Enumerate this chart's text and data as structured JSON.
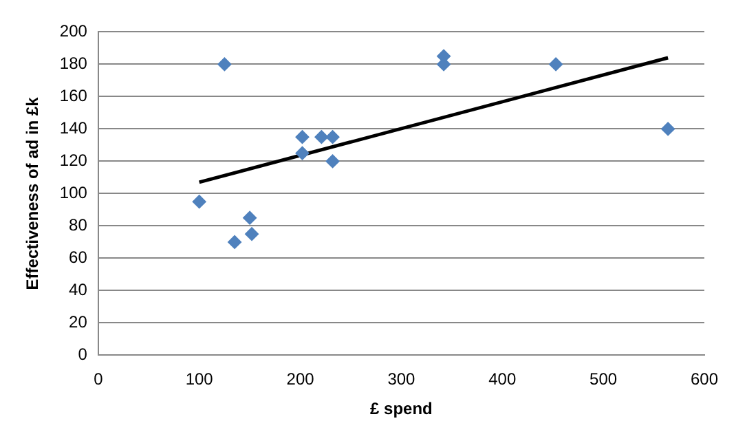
{
  "chart_data": {
    "type": "scatter",
    "xlabel": "£ spend",
    "ylabel": "Effectiveness of ad in £k",
    "x": [
      100,
      125,
      135,
      150,
      152,
      202,
      202,
      221,
      232,
      232,
      342,
      342,
      453,
      564
    ],
    "series": [
      {
        "type": "scatter",
        "color": "#4f81bd",
        "marker": "diamond",
        "values": [
          95,
          180,
          70,
          85,
          75,
          135,
          125,
          135,
          135,
          120,
          185,
          180,
          180,
          140
        ]
      },
      {
        "type": "line",
        "color": "#000000",
        "marker": "none",
        "x": [
          100,
          564
        ],
        "values": [
          107,
          184
        ]
      }
    ],
    "xlim": [
      0,
      600
    ],
    "xticks": [
      0,
      100,
      200,
      300,
      400,
      500,
      600
    ],
    "ylim": [
      0,
      200
    ],
    "yticks": [
      0,
      20,
      40,
      60,
      80,
      100,
      120,
      140,
      160,
      180,
      200
    ],
    "grid": "y",
    "legend": false
  }
}
